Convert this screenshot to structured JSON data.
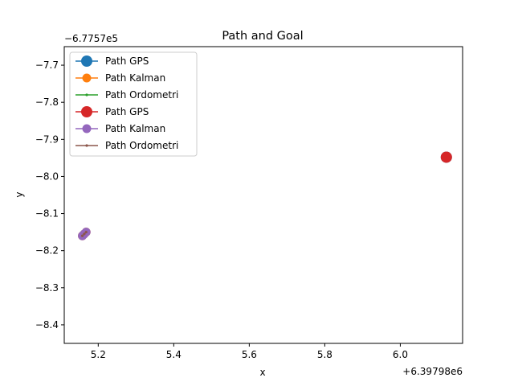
{
  "chart_data": {
    "type": "line",
    "title": "Path and Goal",
    "xlabel": "x",
    "ylabel": "y",
    "x_offset_label": "+6.39798e6",
    "y_offset_label": "−6.7757e5",
    "xlim": [
      5.11,
      6.165
    ],
    "ylim": [
      -8.45,
      -7.65
    ],
    "x_ticks": [
      5.2,
      5.4,
      5.6,
      5.8,
      6.0
    ],
    "x_tick_labels": [
      "5.2",
      "5.4",
      "5.6",
      "5.8",
      "6.0"
    ],
    "y_ticks": [
      -7.7,
      -7.8,
      -7.9,
      -8.0,
      -8.1,
      -8.2,
      -8.3,
      -8.4
    ],
    "y_tick_labels": [
      "−7.7",
      "−7.8",
      "−7.9",
      "−8.0",
      "−8.1",
      "−8.2",
      "−8.3",
      "−8.4"
    ],
    "grid": false,
    "legend_position": "top-left",
    "series": [
      {
        "name": "Path GPS",
        "color": "#1f77b4",
        "marker": "circle-large",
        "x": [
          6.122
        ],
        "y": [
          -7.948
        ]
      },
      {
        "name": "Path Kalman",
        "color": "#ff7f0e",
        "marker": "circle",
        "x": [
          5.158,
          5.163,
          5.168
        ],
        "y": [
          -8.16,
          -8.155,
          -8.15
        ]
      },
      {
        "name": "Path Ordometri",
        "color": "#2ca02c",
        "marker": "dot",
        "x": [
          5.158,
          5.163,
          5.168
        ],
        "y": [
          -8.16,
          -8.155,
          -8.15
        ]
      },
      {
        "name": "Path GPS",
        "color": "#d62728",
        "marker": "circle-large",
        "x": [
          6.122
        ],
        "y": [
          -7.948
        ]
      },
      {
        "name": "Path Kalman",
        "color": "#9467bd",
        "marker": "circle",
        "x": [
          5.158,
          5.163,
          5.168
        ],
        "y": [
          -8.16,
          -8.155,
          -8.15
        ]
      },
      {
        "name": "Path Ordometri",
        "color": "#8c564b",
        "marker": "dot",
        "x": [
          5.158,
          5.163,
          5.168
        ],
        "y": [
          -8.16,
          -8.155,
          -8.15
        ]
      }
    ]
  }
}
